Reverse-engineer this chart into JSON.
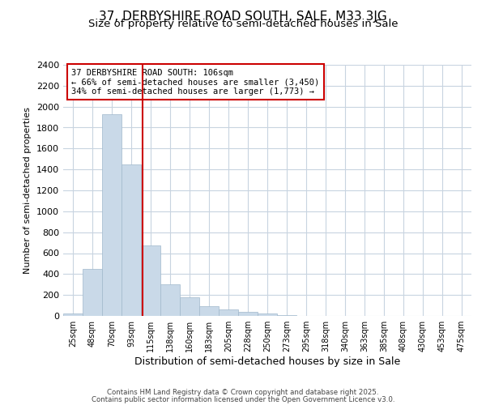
{
  "title1": "37, DERBYSHIRE ROAD SOUTH, SALE, M33 3JG",
  "title2": "Size of property relative to semi-detached houses in Sale",
  "xlabel": "Distribution of semi-detached houses by size in Sale",
  "ylabel": "Number of semi-detached properties",
  "bin_labels": [
    "25sqm",
    "48sqm",
    "70sqm",
    "93sqm",
    "115sqm",
    "138sqm",
    "160sqm",
    "183sqm",
    "205sqm",
    "228sqm",
    "250sqm",
    "273sqm",
    "295sqm",
    "318sqm",
    "340sqm",
    "363sqm",
    "385sqm",
    "408sqm",
    "430sqm",
    "453sqm",
    "475sqm"
  ],
  "bar_values": [
    20,
    450,
    1930,
    1450,
    670,
    300,
    180,
    90,
    60,
    35,
    20,
    5,
    0,
    0,
    0,
    0,
    0,
    0,
    0,
    0,
    0
  ],
  "bar_color": "#c9d9e8",
  "bar_edgecolor": "#a0b8cc",
  "bin_edges": [
    25,
    48,
    70,
    93,
    115,
    138,
    160,
    183,
    205,
    228,
    250,
    273,
    295,
    318,
    340,
    363,
    385,
    408,
    430,
    453,
    475
  ],
  "property_size": 106,
  "property_bin_idx": 3,
  "annotation_title": "37 DERBYSHIRE ROAD SOUTH: 106sqm",
  "annotation_line1": "← 66% of semi-detached houses are smaller (3,450)",
  "annotation_line2": "34% of semi-detached houses are larger (1,773) →",
  "annotation_box_color": "#ffffff",
  "annotation_box_edgecolor": "#cc0000",
  "red_line_color": "#cc0000",
  "ylim": [
    0,
    2400
  ],
  "yticks": [
    0,
    200,
    400,
    600,
    800,
    1000,
    1200,
    1400,
    1600,
    1800,
    2000,
    2200,
    2400
  ],
  "footer1": "Contains HM Land Registry data © Crown copyright and database right 2025.",
  "footer2": "Contains public sector information licensed under the Open Government Licence v3.0.",
  "bg_color": "#ffffff",
  "grid_color": "#c8d4e0",
  "title_fontsize": 11,
  "subtitle_fontsize": 9.5,
  "ylabel_fontsize": 8,
  "xlabel_fontsize": 9
}
